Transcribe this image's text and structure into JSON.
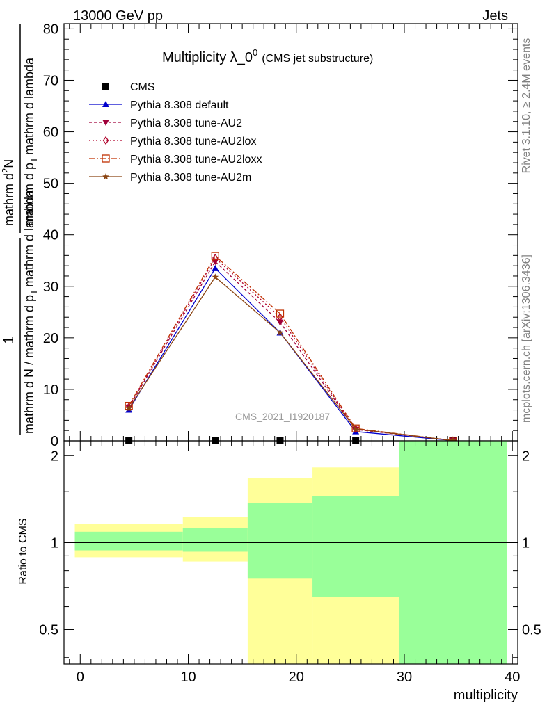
{
  "header": {
    "left": "13000 GeV pp",
    "right": "Jets"
  },
  "side": {
    "rivet": "Rivet 3.1.10, ≥ 2.4M events",
    "mcplots": "mcplots.cern.ch [arXiv:1306.3436]"
  },
  "chart_data": [
    {
      "type": "line",
      "title": "Multiplicity λ_0",
      "title_sup": "0",
      "title_suffix": "(CMS jet substructure)",
      "watermark": "CMS_2021_I1920187",
      "ylabel_num": "1",
      "ylabel_den": "mathrm d N / mathrm d p",
      "ylabel_den_sub": "T",
      "ylabel_den_tail": "mathrm d lambda",
      "ylabel_right_frac_num": "mathrm d",
      "ylabel_right_frac_sup": "2",
      "ylabel_right_frac_N": "N",
      "ylabel_right_frac_den": "mathrm d p",
      "ylabel_right_frac_den_sub": "T",
      "ylabel_right_frac_den_tail": "mathrm d lambda",
      "xlim": [
        -1.5,
        40.5
      ],
      "ylim": [
        0,
        81
      ],
      "yticks": [
        0,
        10,
        20,
        30,
        40,
        50,
        60,
        70,
        80
      ],
      "legend_position": "top-left",
      "series": [
        {
          "name": "CMS",
          "color": "#000000",
          "marker": "square",
          "dash": "",
          "x": [
            4.5,
            12.5,
            18.5,
            25.5,
            34.5
          ],
          "y": [
            0.05,
            0.05,
            0.05,
            0.05,
            0.0
          ]
        },
        {
          "name": "Pythia 8.308 default",
          "color": "#0000cc",
          "marker": "triangle-up",
          "dash": "",
          "x": [
            4.5,
            12.5,
            18.5,
            25.5,
            34.5
          ],
          "y": [
            6.0,
            33.5,
            21.0,
            1.8,
            0.05
          ]
        },
        {
          "name": "Pythia 8.308 tune-AU2",
          "color": "#a0003a",
          "marker": "triangle-down",
          "dash": "4,3",
          "x": [
            4.5,
            12.5,
            18.5,
            25.5,
            34.5
          ],
          "y": [
            6.5,
            34.8,
            23.0,
            2.2,
            0.05
          ]
        },
        {
          "name": "Pythia 8.308 tune-AU2lox",
          "color": "#b0002a",
          "marker": "diamond-open",
          "dash": "2,3",
          "x": [
            4.5,
            12.5,
            18.5,
            25.5,
            34.5
          ],
          "y": [
            6.6,
            35.5,
            24.0,
            2.3,
            0.05
          ]
        },
        {
          "name": "Pythia 8.308 tune-AU2loxx",
          "color": "#c03000",
          "marker": "square-open",
          "dash": "8,3,2,3",
          "x": [
            4.5,
            12.5,
            18.5,
            25.5,
            34.5
          ],
          "y": [
            6.8,
            35.9,
            24.7,
            2.4,
            0.05
          ]
        },
        {
          "name": "Pythia 8.308 tune-AU2m",
          "color": "#8b4513",
          "marker": "star",
          "dash": "",
          "x": [
            4.5,
            12.5,
            18.5,
            25.5,
            34.5
          ],
          "y": [
            6.3,
            31.8,
            21.0,
            2.3,
            0.05
          ]
        }
      ]
    },
    {
      "type": "area",
      "ylabel": "Ratio to CMS",
      "xlabel": "multiplicity",
      "xlim": [
        -1.5,
        40.5
      ],
      "ylim": [
        0.38,
        2.25
      ],
      "yticks": [
        0.5,
        1,
        2
      ],
      "xticks": [
        0,
        10,
        20,
        30,
        40
      ],
      "reference_line": 1,
      "bands": [
        {
          "x0": -0.5,
          "x1": 9.5,
          "yellow": [
            0.89,
            1.16
          ],
          "green": [
            0.94,
            1.09
          ]
        },
        {
          "x0": 9.5,
          "x1": 15.5,
          "yellow": [
            0.86,
            1.23
          ],
          "green": [
            0.93,
            1.12
          ]
        },
        {
          "x0": 15.5,
          "x1": 21.5,
          "yellow": [
            0.37,
            1.67
          ],
          "green": [
            0.75,
            1.37
          ]
        },
        {
          "x0": 21.5,
          "x1": 29.5,
          "yellow": [
            0.37,
            1.82
          ],
          "green": [
            0.65,
            1.45
          ]
        },
        {
          "x0": 29.5,
          "x1": 39.5,
          "yellow": [
            0.37,
            2.3
          ],
          "green": [
            0.37,
            2.3
          ]
        }
      ],
      "colors": {
        "yellow": "#ffff99",
        "green": "#99ff99"
      }
    }
  ]
}
